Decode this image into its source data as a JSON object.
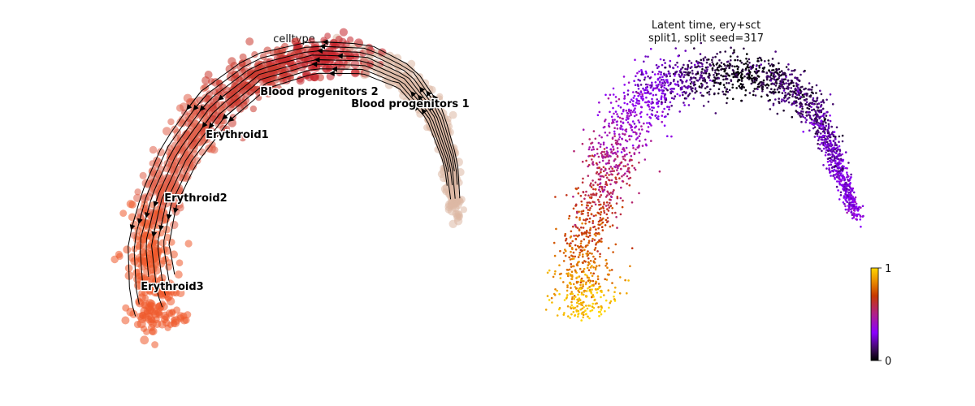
{
  "chart_data": [
    {
      "type": "scatter",
      "subtype": "umap-velocity-stream",
      "title": "celltype",
      "axes_visible": false,
      "grid": false,
      "legend": "on-data",
      "stream_arrows": true,
      "groups": [
        {
          "name": "Blood progenitors 2",
          "color": "#c4242c"
        },
        {
          "name": "Blood progenitors 1",
          "color": "#dcb8a4"
        },
        {
          "name": "Erythroid1",
          "color": "#cb3a2f"
        },
        {
          "name": "Erythroid2",
          "color": "#e0604a"
        },
        {
          "name": "Erythroid3",
          "color": "#ef5a2b"
        }
      ]
    },
    {
      "type": "scatter",
      "subtype": "umap-continuous",
      "title": "Latent time, ery+sct",
      "subtitle": "split1, split seed=317",
      "axes_visible": false,
      "grid": false,
      "colormap": "gnuplot",
      "colorbar": {
        "min": 0,
        "max": 1,
        "ticks": [
          "0",
          "1"
        ],
        "placement": "right"
      }
    }
  ]
}
